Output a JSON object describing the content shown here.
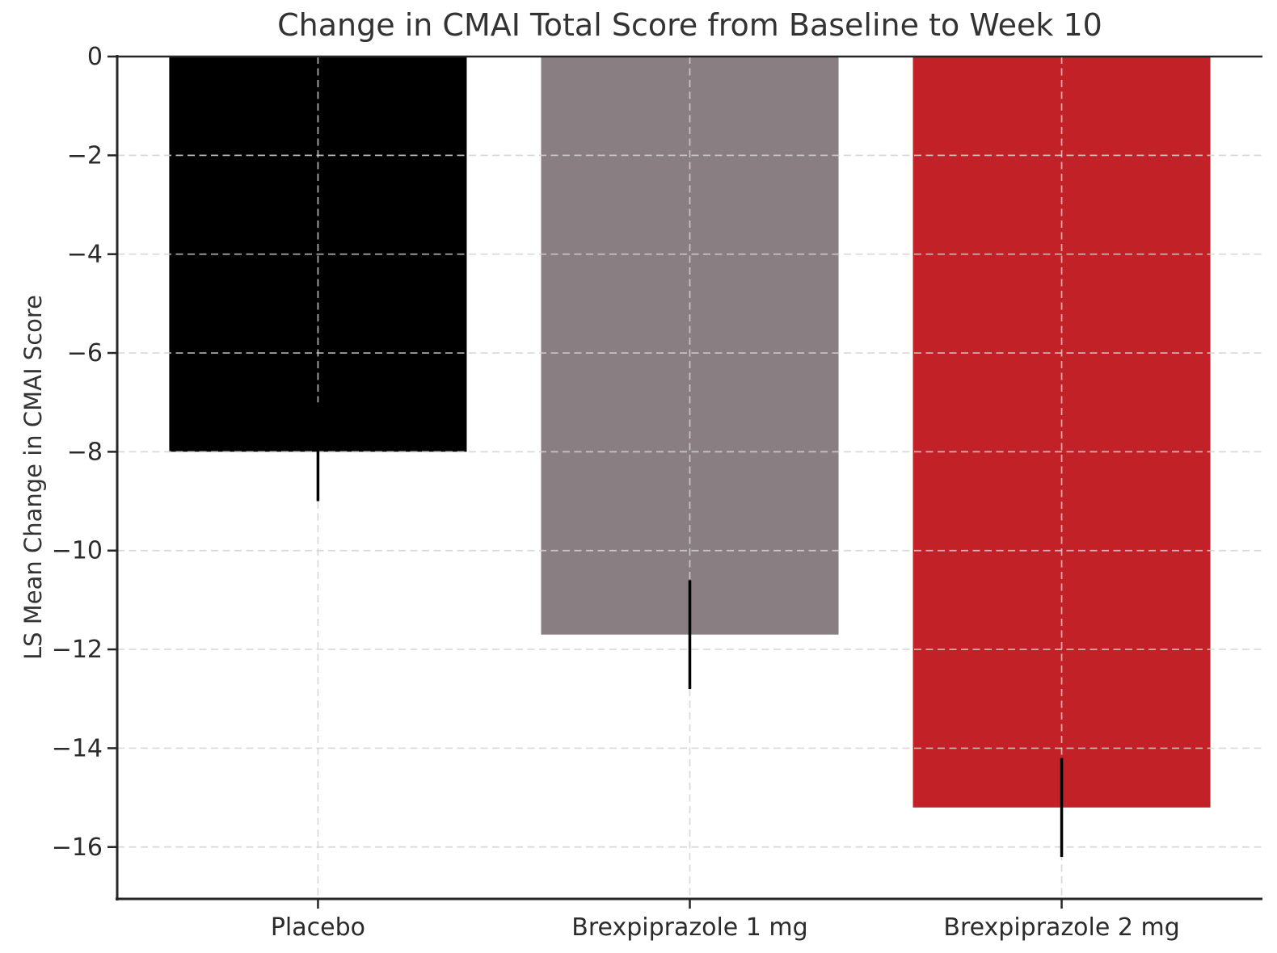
{
  "figure": {
    "background": "#ffffff"
  },
  "chart_data": {
    "type": "bar",
    "title": "Change in CMAI Total Score from Baseline to Week 10",
    "xlabel": "",
    "ylabel": "LS Mean Change in CMAI Score",
    "categories": [
      "Placebo",
      "Brexpiprazole 1 mg",
      "Brexpiprazole 2 mg"
    ],
    "values": [
      -8.0,
      -11.7,
      -15.2
    ],
    "error_bars": [
      1.0,
      1.1,
      1.0
    ],
    "bar_colors": [
      "#000000",
      "#897f82",
      "#c22127"
    ],
    "errorbar_color": "#000000",
    "ylim": [
      -17.05,
      0
    ],
    "yticks": [
      0,
      -2,
      -4,
      -6,
      -8,
      -10,
      -12,
      -14,
      -16
    ],
    "ytick_labels": [
      "0",
      "−2",
      "−4",
      "−6",
      "−8",
      "−10",
      "−12",
      "−14",
      "−16"
    ],
    "bar_width_fraction": 0.8,
    "grid": {
      "visible": true,
      "style": "dashed",
      "drawn_above_bars": true,
      "horizontal_at_yticks": true,
      "vertical_at_categories": true
    },
    "legend": "none",
    "spine_color": "#262626",
    "text_color": "#333333"
  }
}
